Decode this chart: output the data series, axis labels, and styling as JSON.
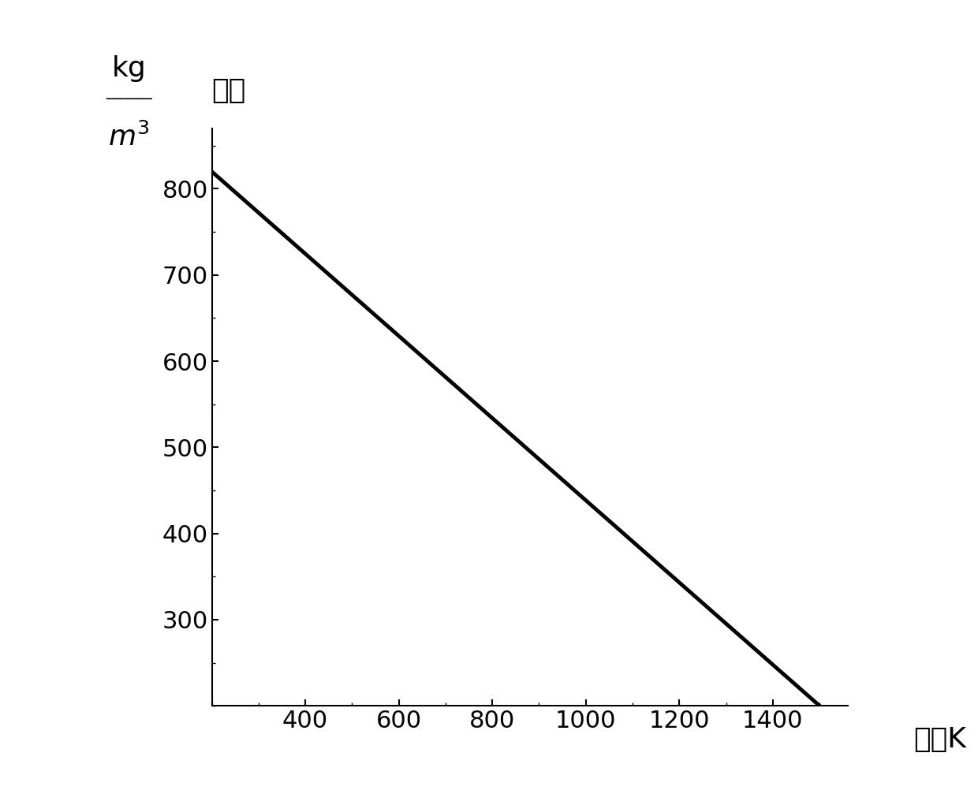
{
  "x_start": 200,
  "x_end": 1500,
  "y_start": 820,
  "y_end": 200,
  "x_ticks": [
    400,
    600,
    800,
    1000,
    1200,
    1400
  ],
  "y_ticks": [
    300,
    400,
    500,
    600,
    700,
    800
  ],
  "xlim": [
    200,
    1560
  ],
  "ylim": [
    200,
    870
  ],
  "line_color": "#000000",
  "line_width": 3.5,
  "bg_color": "#ffffff",
  "xlabel": "温度K",
  "ylabel_top": "kg",
  "ylabel_mid": "—",
  "ylabel_bot": "m³",
  "ylabel_side": "密度",
  "tick_fontsize": 22,
  "label_fontsize": 26
}
